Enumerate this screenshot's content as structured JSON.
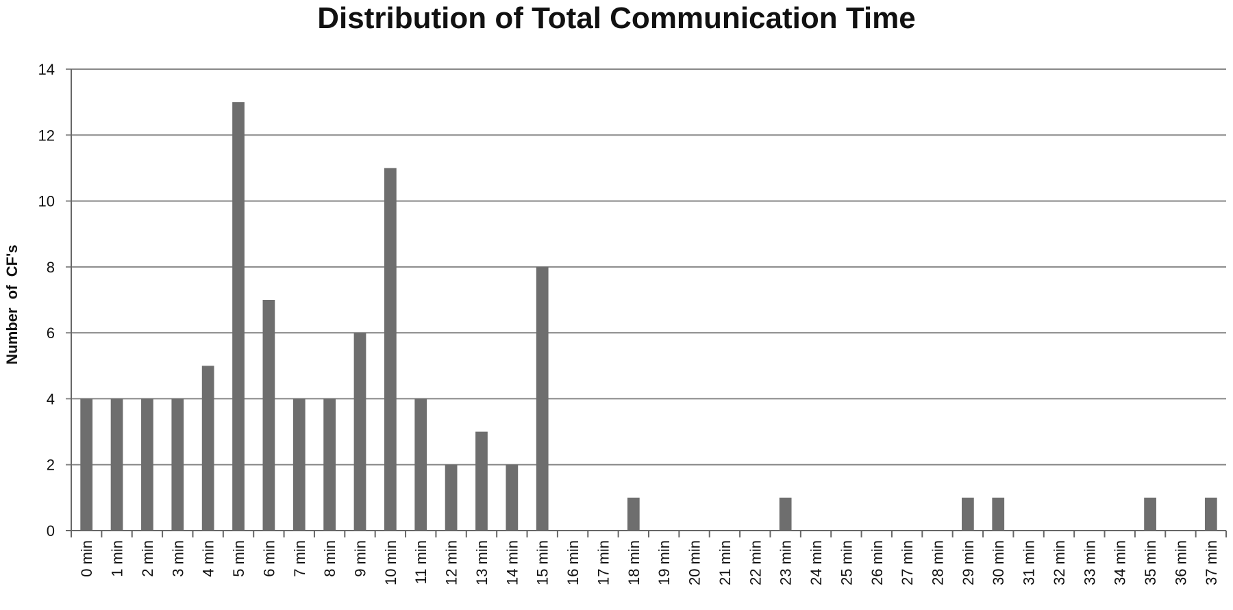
{
  "chart_data": {
    "type": "bar",
    "title": "Distribution of Total Communication Time",
    "xlabel": "",
    "ylabel": "Number  of  CF's",
    "ylim": [
      0,
      14
    ],
    "yticks": [
      0,
      2,
      4,
      6,
      8,
      10,
      12,
      14
    ],
    "grid": true,
    "bar_color": "#6e6e6e",
    "grid_color": "#888888",
    "categories": [
      "0 min",
      "1 min",
      "2 min",
      "3 min",
      "4 min",
      "5 min",
      "6 min",
      "7 min",
      "8 min",
      "9 min",
      "10 min",
      "11 min",
      "12 min",
      "13 min",
      "14 min",
      "15 min",
      "16 min",
      "17 min",
      "18 min",
      "19 min",
      "20 min",
      "21 min",
      "22 min",
      "23 min",
      "24 min",
      "25 min",
      "26 min",
      "27 min",
      "28 min",
      "29 min",
      "30 min",
      "31 min",
      "32 min",
      "33 min",
      "34 min",
      "35 min",
      "36 min",
      "37 min"
    ],
    "values": [
      4,
      4,
      4,
      4,
      5,
      13,
      7,
      4,
      4,
      6,
      11,
      4,
      2,
      3,
      2,
      8,
      0,
      0,
      1,
      0,
      0,
      0,
      0,
      1,
      0,
      0,
      0,
      0,
      0,
      1,
      1,
      0,
      0,
      0,
      0,
      1,
      0,
      1
    ]
  }
}
